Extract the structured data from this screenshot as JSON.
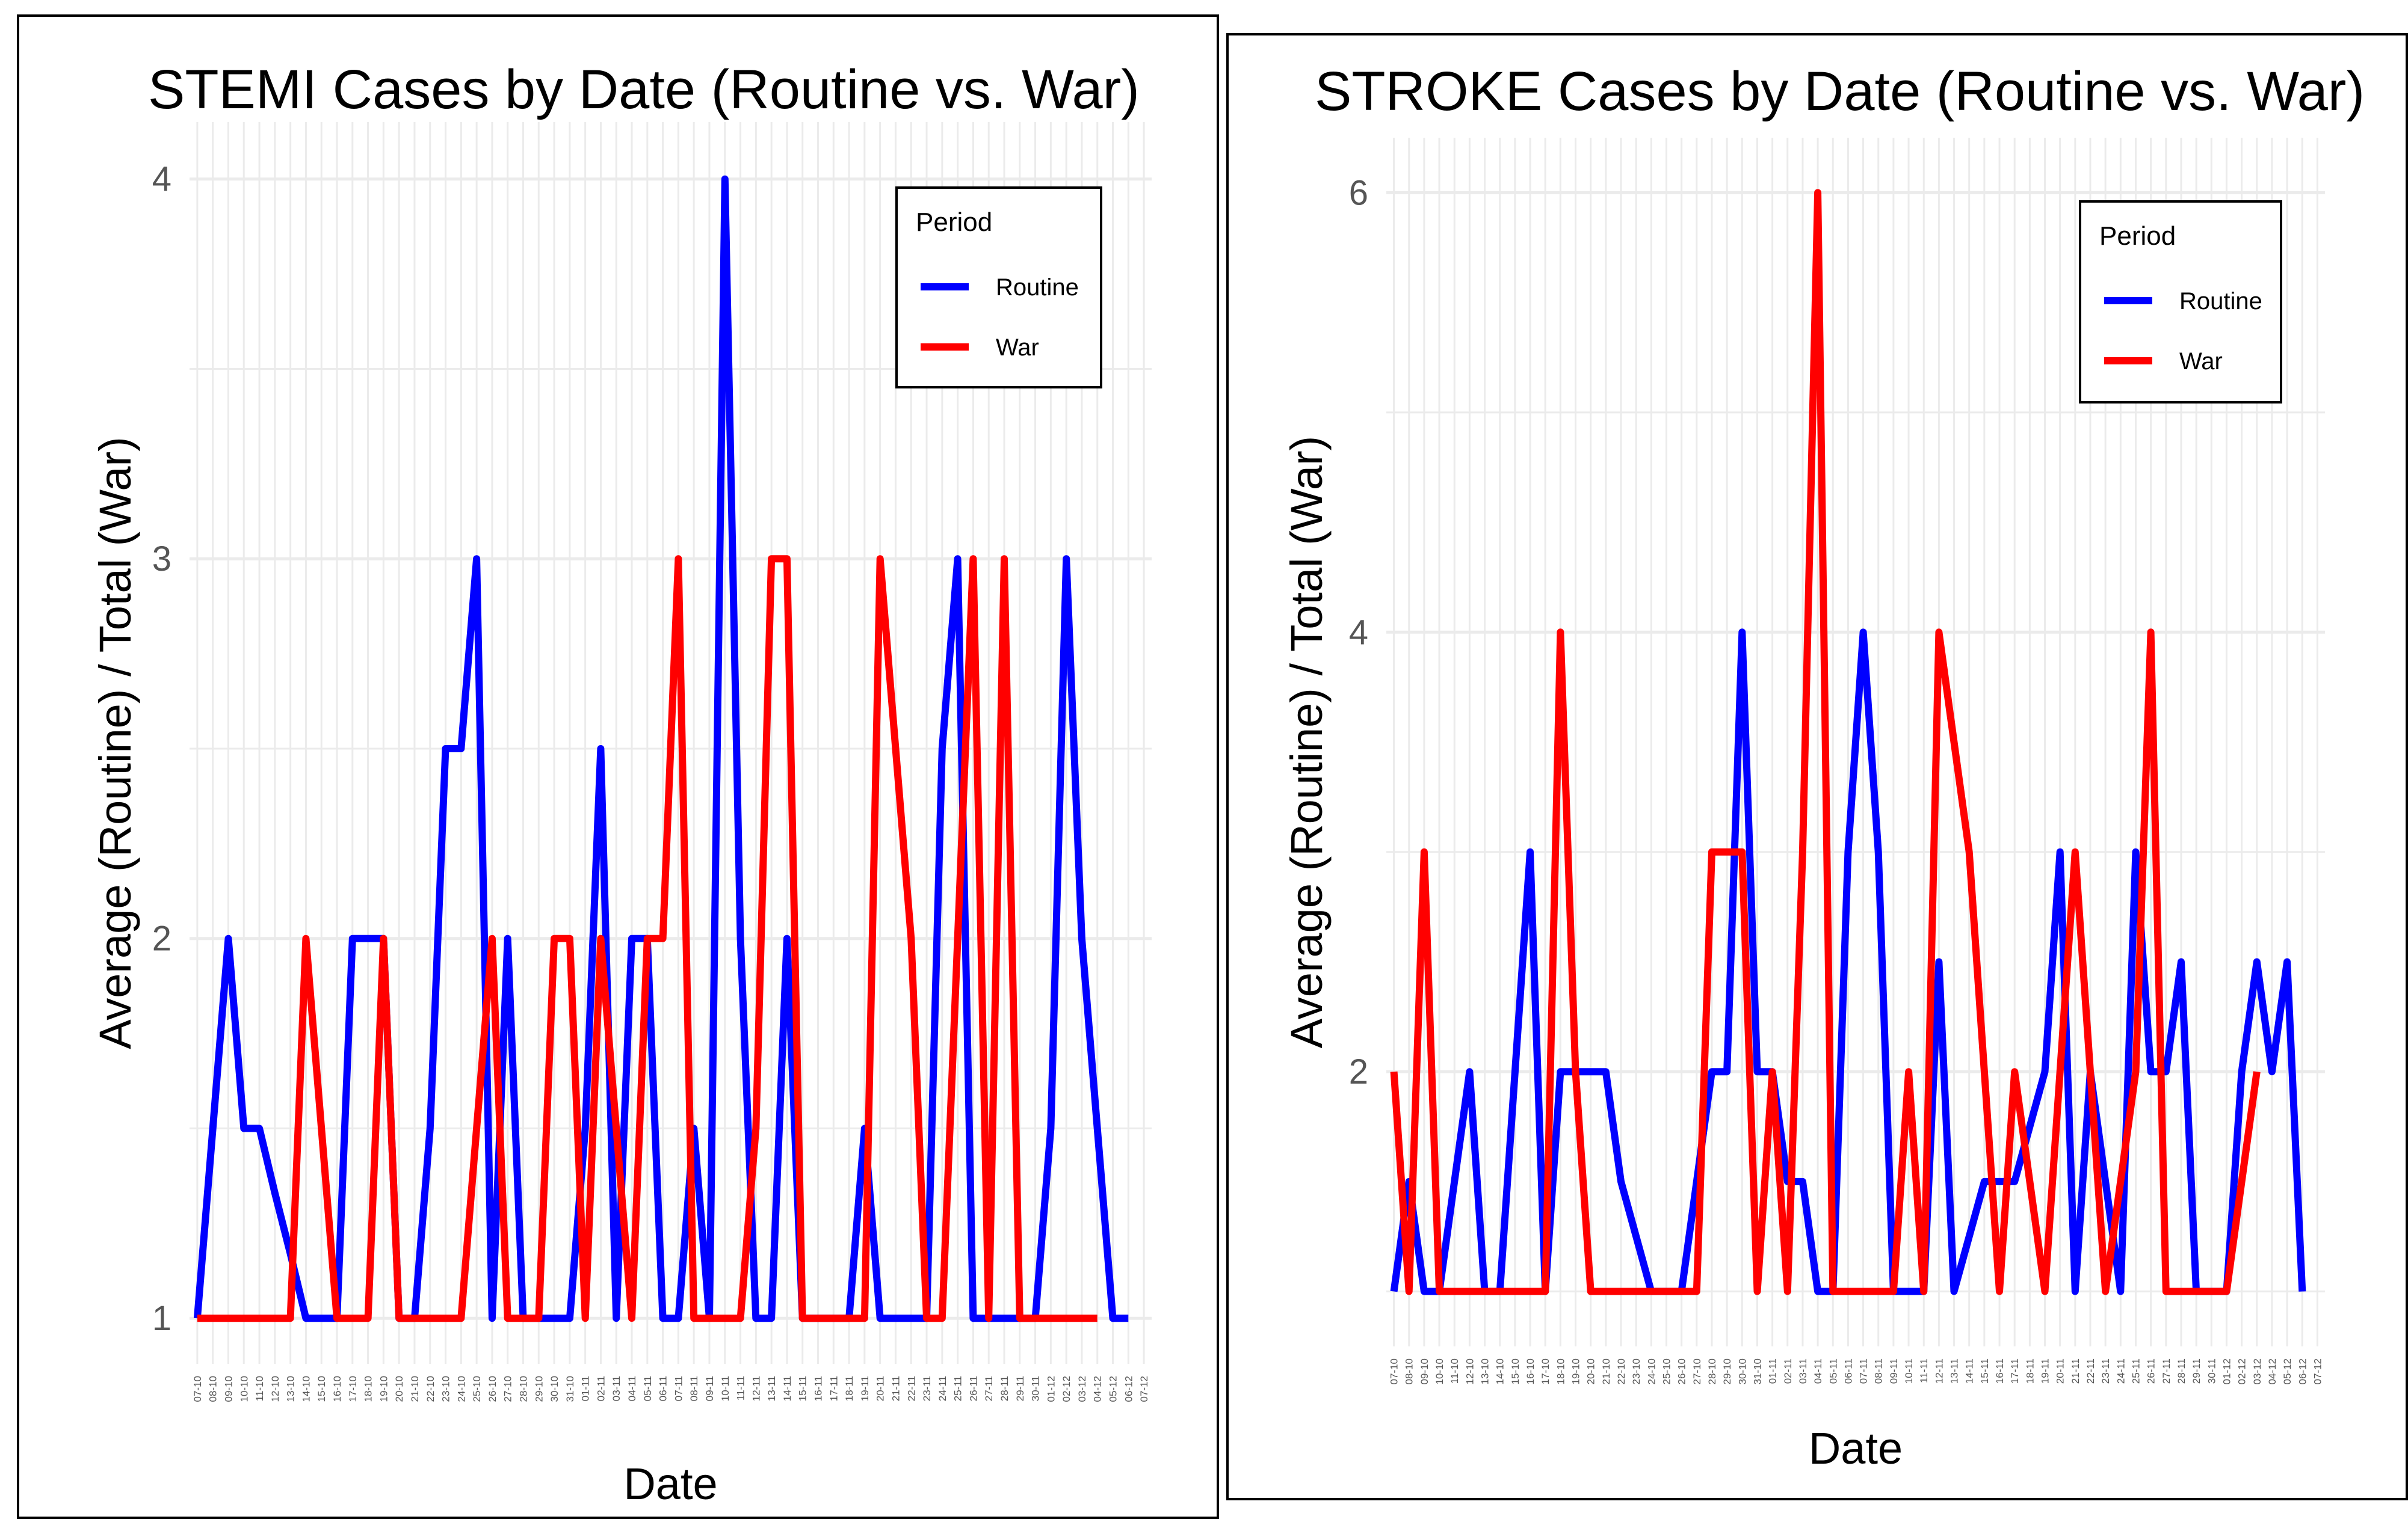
{
  "chart_data": [
    {
      "type": "line",
      "title": "STEMI Cases by Date (Routine vs. War)",
      "xlabel": "Date",
      "ylabel": "Average (Routine) / Total (War)",
      "ylim": [
        0.88,
        4.15
      ],
      "yticks": [
        1,
        2,
        3,
        4
      ],
      "legend": {
        "title": "Period",
        "position": "top-right"
      },
      "categories": [
        "07-10",
        "08-10",
        "09-10",
        "10-10",
        "11-10",
        "12-10",
        "13-10",
        "14-10",
        "15-10",
        "16-10",
        "17-10",
        "18-10",
        "19-10",
        "20-10",
        "21-10",
        "22-10",
        "23-10",
        "24-10",
        "25-10",
        "26-10",
        "27-10",
        "28-10",
        "29-10",
        "30-10",
        "31-10",
        "01-11",
        "02-11",
        "03-11",
        "04-11",
        "05-11",
        "06-11",
        "07-11",
        "08-11",
        "09-11",
        "10-11",
        "11-11",
        "12-11",
        "13-11",
        "14-11",
        "15-11",
        "16-11",
        "17-11",
        "18-11",
        "19-11",
        "20-11",
        "21-11",
        "22-11",
        "23-11",
        "24-11",
        "25-11",
        "26-11",
        "27-11",
        "28-11",
        "29-11",
        "30-11",
        "01-12",
        "02-12",
        "03-12",
        "04-12",
        "05-12",
        "06-12",
        "07-12"
      ],
      "series": [
        {
          "name": "Routine",
          "color": "#0000ff",
          "values": [
            1,
            1.5,
            2,
            1.5,
            1.5,
            1.33,
            1.17,
            1,
            1,
            1,
            2,
            2,
            2,
            1,
            1,
            1.5,
            2.5,
            2.5,
            3,
            1,
            2,
            1,
            1,
            1,
            1,
            1.5,
            2.5,
            1,
            2,
            2,
            1,
            1,
            1.5,
            1,
            4,
            2,
            1,
            1,
            2,
            1,
            1,
            1,
            1,
            1.5,
            1,
            1,
            1,
            1,
            2.5,
            3,
            1,
            1,
            1,
            1,
            1,
            1.5,
            3,
            2,
            1.5,
            1,
            1,
            null
          ]
        },
        {
          "name": "War",
          "color": "#ff0000",
          "values": [
            1,
            1,
            1,
            1,
            1,
            1,
            1,
            2,
            1.5,
            1,
            1,
            1,
            2,
            1,
            1,
            1,
            1,
            1,
            1.5,
            2,
            1,
            1,
            1,
            2,
            2,
            1,
            2,
            1.5,
            1,
            2,
            2,
            3,
            1,
            1,
            1,
            1,
            1.5,
            3,
            3,
            1,
            1,
            1,
            1,
            1,
            3,
            2.5,
            2,
            1,
            1,
            2,
            3,
            1,
            3,
            1,
            1,
            1,
            1,
            1,
            1,
            null,
            null,
            null
          ]
        }
      ]
    },
    {
      "type": "line",
      "title": "STROKE Cases by Date (Routine vs. War)",
      "xlabel": "Date",
      "ylabel": "Average (Routine) / Total (War)",
      "ylim": [
        0.75,
        6.25
      ],
      "yticks": [
        2,
        4,
        6
      ],
      "legend": {
        "title": "Period",
        "position": "top-right"
      },
      "categories": [
        "07-10",
        "08-10",
        "09-10",
        "10-10",
        "11-10",
        "12-10",
        "13-10",
        "14-10",
        "15-10",
        "16-10",
        "17-10",
        "18-10",
        "19-10",
        "20-10",
        "21-10",
        "22-10",
        "23-10",
        "24-10",
        "25-10",
        "26-10",
        "27-10",
        "28-10",
        "29-10",
        "30-10",
        "31-10",
        "01-11",
        "02-11",
        "03-11",
        "04-11",
        "05-11",
        "06-11",
        "07-11",
        "08-11",
        "09-11",
        "10-11",
        "11-11",
        "12-11",
        "13-11",
        "14-11",
        "15-11",
        "16-11",
        "17-11",
        "18-11",
        "19-11",
        "20-11",
        "21-11",
        "22-11",
        "23-11",
        "24-11",
        "25-11",
        "26-11",
        "27-11",
        "28-11",
        "29-11",
        "30-11",
        "01-12",
        "02-12",
        "03-12",
        "04-12",
        "05-12",
        "06-12",
        "07-12"
      ],
      "series": [
        {
          "name": "Routine",
          "color": "#0000ff",
          "values": [
            1,
            1.5,
            1,
            1,
            1.5,
            2,
            1,
            1,
            2,
            3,
            1,
            2,
            2,
            2,
            2,
            1.5,
            1.25,
            1,
            1,
            1,
            1.5,
            2,
            2,
            4,
            2,
            2,
            1.5,
            1.5,
            1,
            1,
            3,
            4,
            3,
            1,
            1,
            1,
            2.5,
            1,
            1.25,
            1.5,
            1.5,
            1.5,
            1.75,
            2,
            3,
            1,
            2,
            1.5,
            1,
            3,
            2,
            2,
            2.5,
            1,
            1,
            1,
            2,
            2.5,
            2,
            2.5,
            1,
            null
          ]
        },
        {
          "name": "War",
          "color": "#ff0000",
          "values": [
            2,
            1,
            3,
            1,
            1,
            1,
            1,
            1,
            1,
            1,
            1,
            4,
            2,
            1,
            1,
            1,
            1,
            1,
            1,
            1,
            1,
            3,
            3,
            3,
            1,
            2,
            1,
            3,
            6,
            1,
            1,
            1,
            1,
            1,
            2,
            1,
            4,
            3.5,
            3,
            2,
            1,
            2,
            1.5,
            1,
            2,
            3,
            2,
            1,
            1.5,
            2,
            4,
            1,
            1,
            1,
            1,
            1,
            1.5,
            2,
            null,
            null,
            null,
            null
          ]
        }
      ]
    }
  ]
}
